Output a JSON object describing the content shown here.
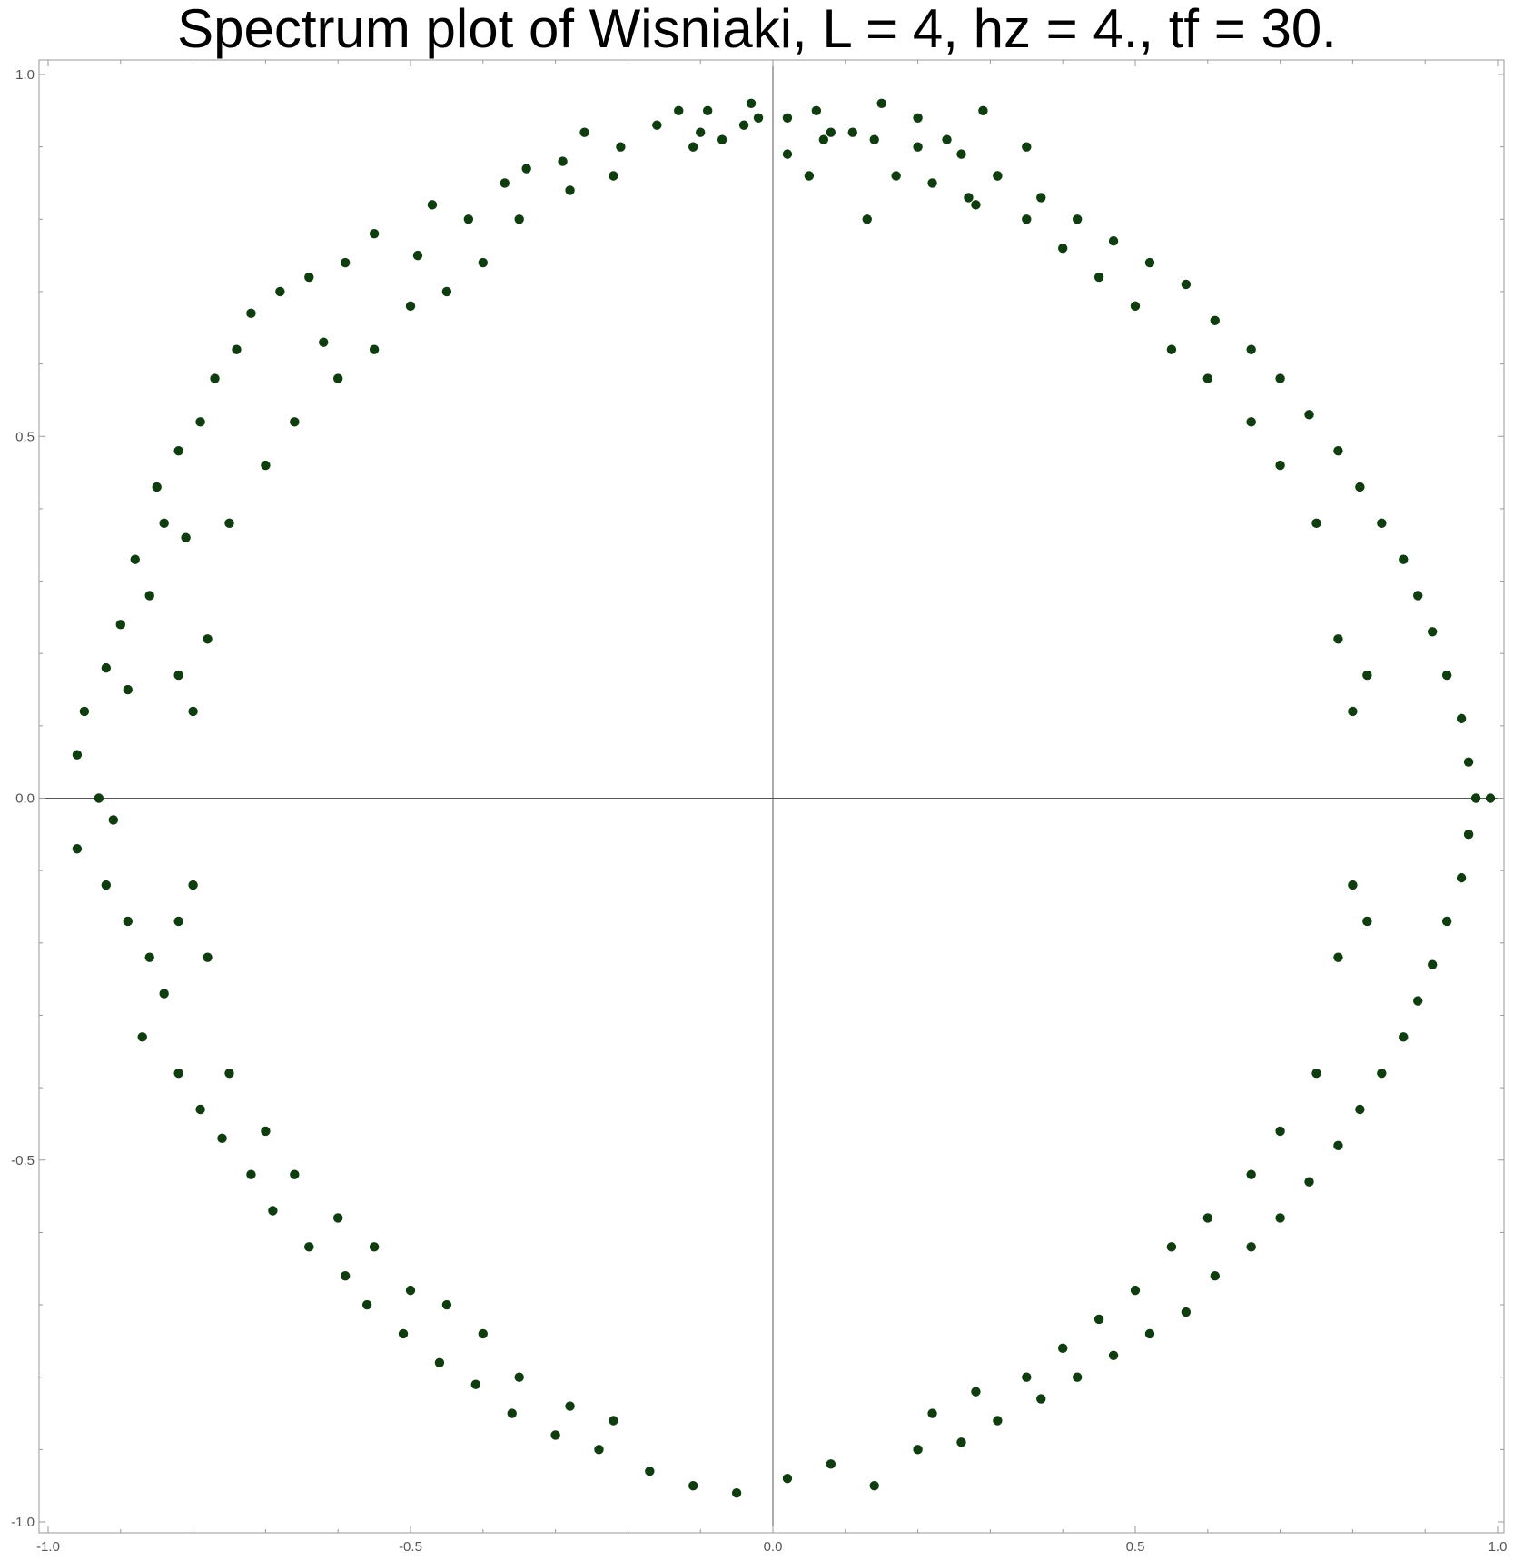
{
  "chart_data": {
    "type": "scatter",
    "title": "Spectrum plot of Wisniaki, L = 4, hz = 4., tf = 30.",
    "xlabel": "",
    "ylabel": "",
    "xlim": [
      -1.0,
      1.0
    ],
    "ylim": [
      -1.0,
      1.0
    ],
    "x_ticks": [
      "-1.0",
      "-0.5",
      "0.0",
      "0.5",
      "1.0"
    ],
    "y_ticks": [
      "1.0",
      "0.5",
      "0.0",
      "-0.5",
      "-1.0"
    ],
    "grid": false,
    "legend": "none",
    "marker_color": "#0f3d0f",
    "axis_line_color": "#555555",
    "frame_color": "#9a9a9a",
    "series": [
      {
        "points": [
          [
            -0.1,
            0.92
          ],
          [
            -0.13,
            0.95
          ],
          [
            -0.07,
            0.91
          ],
          [
            -0.02,
            0.94
          ],
          [
            -0.04,
            0.93
          ],
          [
            -0.11,
            0.9
          ],
          [
            -0.16,
            0.93
          ],
          [
            0.06,
            0.95
          ],
          [
            0.02,
            0.89
          ],
          [
            0.07,
            0.91
          ],
          [
            0.11,
            0.92
          ],
          [
            0.15,
            0.96
          ],
          [
            0.2,
            0.94
          ],
          [
            0.24,
            0.91
          ],
          [
            0.29,
            0.95
          ],
          [
            0.31,
            0.86
          ],
          [
            0.35,
            0.9
          ],
          [
            0.27,
            0.83
          ],
          [
            0.17,
            0.86
          ],
          [
            0.13,
            0.8
          ],
          [
            0.05,
            0.86
          ],
          [
            -0.26,
            0.92
          ],
          [
            -0.29,
            0.88
          ],
          [
            -0.21,
            0.9
          ],
          [
            -0.34,
            0.87
          ],
          [
            -0.37,
            0.85
          ],
          [
            -0.42,
            0.8
          ],
          [
            -0.47,
            0.82
          ],
          [
            -0.49,
            0.75
          ],
          [
            -0.55,
            0.78
          ],
          [
            -0.59,
            0.74
          ],
          [
            -0.64,
            0.72
          ],
          [
            -0.68,
            0.7
          ],
          [
            -0.72,
            0.67
          ],
          [
            -0.62,
            0.63
          ],
          [
            -0.74,
            0.62
          ],
          [
            -0.77,
            0.58
          ],
          [
            -0.79,
            0.52
          ],
          [
            -0.82,
            0.48
          ],
          [
            -0.85,
            0.43
          ],
          [
            -0.84,
            0.38
          ],
          [
            -0.81,
            0.36
          ],
          [
            -0.88,
            0.33
          ],
          [
            -0.86,
            0.28
          ],
          [
            -0.9,
            0.24
          ],
          [
            -0.92,
            0.18
          ],
          [
            -0.89,
            0.15
          ],
          [
            -0.95,
            0.12
          ],
          [
            -0.96,
            0.06
          ],
          [
            -0.93,
            0.0
          ],
          [
            -0.91,
            -0.03
          ],
          [
            -0.96,
            -0.07
          ],
          [
            -0.92,
            -0.12
          ],
          [
            -0.89,
            -0.17
          ],
          [
            -0.86,
            -0.22
          ],
          [
            -0.84,
            -0.27
          ],
          [
            -0.87,
            -0.33
          ],
          [
            -0.82,
            -0.38
          ],
          [
            -0.79,
            -0.43
          ],
          [
            -0.76,
            -0.47
          ],
          [
            -0.72,
            -0.52
          ],
          [
            -0.69,
            -0.57
          ],
          [
            -0.64,
            -0.62
          ],
          [
            -0.59,
            -0.66
          ],
          [
            -0.56,
            -0.7
          ],
          [
            -0.51,
            -0.74
          ],
          [
            -0.46,
            -0.78
          ],
          [
            -0.41,
            -0.81
          ],
          [
            -0.36,
            -0.85
          ],
          [
            -0.3,
            -0.88
          ],
          [
            -0.24,
            -0.9
          ],
          [
            -0.17,
            -0.93
          ],
          [
            -0.11,
            -0.95
          ],
          [
            -0.05,
            -0.96
          ],
          [
            0.02,
            -0.94
          ],
          [
            0.08,
            -0.92
          ],
          [
            0.14,
            -0.95
          ],
          [
            0.2,
            -0.9
          ],
          [
            0.26,
            -0.89
          ],
          [
            0.31,
            -0.86
          ],
          [
            0.37,
            -0.83
          ],
          [
            0.42,
            -0.8
          ],
          [
            0.47,
            -0.77
          ],
          [
            0.52,
            -0.74
          ],
          [
            0.57,
            -0.71
          ],
          [
            0.61,
            -0.66
          ],
          [
            0.66,
            -0.62
          ],
          [
            0.7,
            -0.58
          ],
          [
            0.74,
            -0.53
          ],
          [
            0.78,
            -0.48
          ],
          [
            0.81,
            -0.43
          ],
          [
            0.84,
            -0.38
          ],
          [
            0.87,
            -0.33
          ],
          [
            0.89,
            -0.28
          ],
          [
            0.91,
            -0.23
          ],
          [
            0.93,
            -0.17
          ],
          [
            0.95,
            -0.11
          ],
          [
            0.96,
            -0.05
          ],
          [
            0.97,
            0.0
          ],
          [
            0.99,
            0.0
          ],
          [
            0.96,
            0.05
          ],
          [
            0.95,
            0.11
          ],
          [
            0.93,
            0.17
          ],
          [
            0.91,
            0.23
          ],
          [
            0.89,
            0.28
          ],
          [
            0.87,
            0.33
          ],
          [
            0.84,
            0.38
          ],
          [
            0.81,
            0.43
          ],
          [
            0.78,
            0.48
          ],
          [
            0.74,
            0.53
          ],
          [
            0.7,
            0.58
          ],
          [
            0.66,
            0.62
          ],
          [
            0.61,
            0.66
          ],
          [
            0.57,
            0.71
          ],
          [
            0.52,
            0.74
          ],
          [
            0.47,
            0.77
          ],
          [
            0.42,
            0.8
          ],
          [
            0.37,
            0.83
          ],
          [
            0.31,
            0.86
          ],
          [
            0.26,
            0.89
          ],
          [
            0.2,
            0.9
          ],
          [
            0.14,
            0.91
          ],
          [
            0.08,
            0.92
          ],
          [
            0.02,
            0.94
          ],
          [
            -0.03,
            0.96
          ],
          [
            -0.09,
            0.95
          ],
          [
            -0.8,
            0.12
          ],
          [
            -0.82,
            0.17
          ],
          [
            -0.78,
            0.22
          ],
          [
            -0.75,
            0.38
          ],
          [
            -0.7,
            0.46
          ],
          [
            -0.66,
            0.52
          ],
          [
            -0.6,
            0.58
          ],
          [
            -0.55,
            0.62
          ],
          [
            -0.5,
            0.68
          ],
          [
            -0.45,
            0.7
          ],
          [
            -0.4,
            0.74
          ],
          [
            -0.35,
            0.8
          ],
          [
            -0.28,
            0.84
          ],
          [
            -0.22,
            0.86
          ],
          [
            0.8,
            0.12
          ],
          [
            0.82,
            0.17
          ],
          [
            0.78,
            0.22
          ],
          [
            0.75,
            0.38
          ],
          [
            0.7,
            0.46
          ],
          [
            0.66,
            0.52
          ],
          [
            0.6,
            0.58
          ],
          [
            0.55,
            0.62
          ],
          [
            0.5,
            0.68
          ],
          [
            0.45,
            0.72
          ],
          [
            0.4,
            0.76
          ],
          [
            0.35,
            0.8
          ],
          [
            0.28,
            0.82
          ],
          [
            0.22,
            0.85
          ],
          [
            -0.8,
            -0.12
          ],
          [
            -0.82,
            -0.17
          ],
          [
            -0.78,
            -0.22
          ],
          [
            -0.75,
            -0.38
          ],
          [
            -0.7,
            -0.46
          ],
          [
            -0.66,
            -0.52
          ],
          [
            -0.6,
            -0.58
          ],
          [
            -0.55,
            -0.62
          ],
          [
            -0.5,
            -0.68
          ],
          [
            -0.45,
            -0.7
          ],
          [
            -0.4,
            -0.74
          ],
          [
            -0.35,
            -0.8
          ],
          [
            -0.28,
            -0.84
          ],
          [
            -0.22,
            -0.86
          ],
          [
            0.8,
            -0.12
          ],
          [
            0.82,
            -0.17
          ],
          [
            0.78,
            -0.22
          ],
          [
            0.75,
            -0.38
          ],
          [
            0.7,
            -0.46
          ],
          [
            0.66,
            -0.52
          ],
          [
            0.6,
            -0.58
          ],
          [
            0.55,
            -0.62
          ],
          [
            0.5,
            -0.68
          ],
          [
            0.45,
            -0.72
          ],
          [
            0.4,
            -0.76
          ],
          [
            0.35,
            -0.8
          ],
          [
            0.28,
            -0.82
          ],
          [
            0.22,
            -0.85
          ]
        ]
      }
    ]
  }
}
